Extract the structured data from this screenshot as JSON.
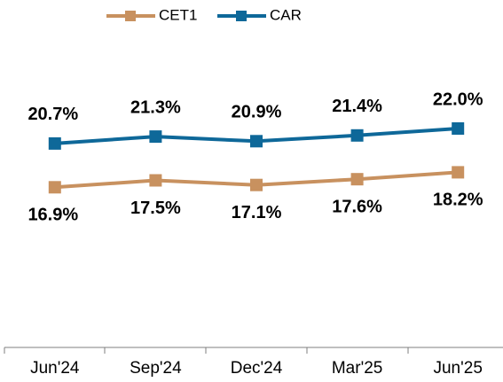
{
  "chart_data": {
    "type": "line",
    "categories": [
      "Jun'24",
      "Sep'24",
      "Dec'24",
      "Mar'25",
      "Jun'25"
    ],
    "series": [
      {
        "name": "CET1",
        "color": "#c8915f",
        "values": [
          16.9,
          17.5,
          17.1,
          17.6,
          18.2
        ],
        "value_labels": [
          "16.9%",
          "17.5%",
          "17.1%",
          "17.6%",
          "18.2%"
        ],
        "label_position": "below"
      },
      {
        "name": "CAR",
        "color": "#0e6899",
        "values": [
          20.7,
          21.3,
          20.9,
          21.4,
          22.0
        ],
        "value_labels": [
          "20.7%",
          "21.3%",
          "20.9%",
          "21.4%",
          "22.0%"
        ],
        "label_position": "above"
      }
    ],
    "ylim": [
      3,
      25
    ],
    "legend": "top"
  }
}
